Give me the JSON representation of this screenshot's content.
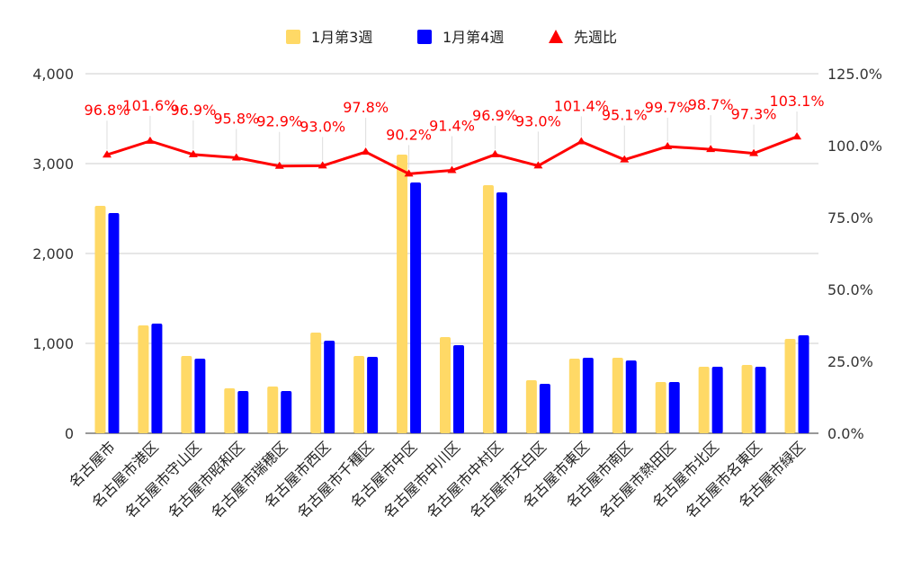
{
  "chart_data": {
    "type": "bar",
    "categories": [
      "名古屋市",
      "名古屋市港区",
      "名古屋市守山区",
      "名古屋市昭和区",
      "名古屋市瑞穂区",
      "名古屋市西区",
      "名古屋市千種区",
      "名古屋市中区",
      "名古屋市中川区",
      "名古屋市中村区",
      "名古屋市天白区",
      "名古屋市東区",
      "名古屋市南区",
      "名古屋市熱田区",
      "名古屋市北区",
      "名古屋市名東区",
      "名古屋市緑区"
    ],
    "series": [
      {
        "name": "1月第3週",
        "type": "bar",
        "axis": "left",
        "color": "#FFD966",
        "values": [
          2530,
          1200,
          860,
          500,
          520,
          1120,
          860,
          3100,
          1070,
          2760,
          590,
          830,
          840,
          570,
          740,
          760,
          1050
        ]
      },
      {
        "name": "1月第4週",
        "type": "bar",
        "axis": "left",
        "color": "#0000FF",
        "values": [
          2450,
          1220,
          830,
          470,
          470,
          1030,
          850,
          2790,
          980,
          2680,
          550,
          840,
          810,
          570,
          740,
          740,
          1090
        ]
      },
      {
        "name": "先週比",
        "type": "line",
        "axis": "right",
        "color": "#FF0000",
        "values": [
          96.8,
          101.6,
          96.9,
          95.8,
          92.9,
          93.0,
          97.8,
          90.2,
          91.4,
          96.9,
          93.0,
          101.4,
          95.1,
          99.7,
          98.7,
          97.3,
          103.1
        ],
        "labels": [
          "96.8%",
          "101.6%",
          "96.9%",
          "95.8%",
          "92.9%",
          "93.0%",
          "97.8%",
          "90.2%",
          "91.4%",
          "96.9%",
          "93.0%",
          "101.4%",
          "95.1%",
          "99.7%",
          "98.7%",
          "97.3%",
          "103.1%"
        ]
      }
    ],
    "ylim": [
      0,
      4000
    ],
    "y_ticks": [
      "0",
      "1,000",
      "2,000",
      "3,000",
      "4,000"
    ],
    "y2lim": [
      0,
      125
    ],
    "y2_ticks": [
      "0.0%",
      "25.0%",
      "50.0%",
      "75.0%",
      "100.0%",
      "125.0%"
    ],
    "legend_position": "top",
    "grid": true
  }
}
